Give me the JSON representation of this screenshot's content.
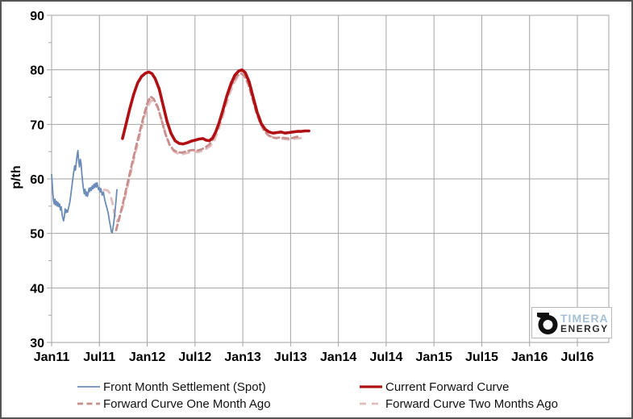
{
  "colors": {
    "grid": "#a3a3a3",
    "axis_text": "#000000",
    "spot_blue": "#6b8bb8",
    "forward_red": "#b01014",
    "one_month_rose": "#c98e8e",
    "two_months_pink": "#e3bcbc",
    "frame_border": "#555555",
    "logo_blue": "#a5c0d4",
    "logo_dark": "#2e2e2e"
  },
  "logo": {
    "brand_top": "TIMERA",
    "brand_bottom": "ENERGY"
  },
  "chart_data": {
    "type": "line",
    "title": "",
    "xlabel": "",
    "ylabel": "p/th",
    "ylim": [
      30,
      90
    ],
    "y_major_ticks": [
      90,
      80,
      70,
      60,
      50,
      40,
      30
    ],
    "y_minor_tick_step": 5,
    "grid": "on",
    "legend_position": "bottom",
    "x_ticks": [
      "Jan11",
      "Jul11",
      "Jan12",
      "Jul12",
      "Jan13",
      "Jul13",
      "Jan14",
      "Jul14",
      "Jan15",
      "Jul15",
      "Jan16",
      "Jul16"
    ],
    "x_months_per_tick": 6,
    "x_axis_note": "x values below are months after Jan11",
    "series": [
      {
        "name": "Front Month Settlement (Spot)",
        "color": "#6b8bb8",
        "dash": "",
        "width": 1.8,
        "points": [
          [
            0,
            60.8
          ],
          [
            0.08,
            59
          ],
          [
            0.16,
            57.2
          ],
          [
            0.24,
            56
          ],
          [
            0.32,
            55.4
          ],
          [
            0.42,
            56.3
          ],
          [
            0.5,
            55.2
          ],
          [
            0.6,
            55.9
          ],
          [
            0.7,
            55
          ],
          [
            0.8,
            55.7
          ],
          [
            0.9,
            54.9
          ],
          [
            1,
            55.4
          ],
          [
            1.1,
            54.3
          ],
          [
            1.2,
            54.9
          ],
          [
            1.35,
            53.2
          ],
          [
            1.5,
            52.3
          ],
          [
            1.6,
            53.1
          ],
          [
            1.7,
            54.5
          ],
          [
            1.8,
            53.8
          ],
          [
            1.9,
            54.3
          ],
          [
            2,
            53.9
          ],
          [
            2.15,
            54.8
          ],
          [
            2.3,
            55.8
          ],
          [
            2.45,
            57.5
          ],
          [
            2.6,
            59.3
          ],
          [
            2.75,
            61
          ],
          [
            2.9,
            62.4
          ],
          [
            3,
            61.6
          ],
          [
            3.1,
            63
          ],
          [
            3.2,
            64.3
          ],
          [
            3.3,
            65.2
          ],
          [
            3.4,
            63.2
          ],
          [
            3.5,
            62.2
          ],
          [
            3.6,
            63.6
          ],
          [
            3.7,
            62.8
          ],
          [
            3.8,
            60.9
          ],
          [
            3.9,
            59.4
          ],
          [
            4,
            58.2
          ],
          [
            4.1,
            57.3
          ],
          [
            4.2,
            58.1
          ],
          [
            4.3,
            56.9
          ],
          [
            4.4,
            57.6
          ],
          [
            4.5,
            56.8
          ],
          [
            4.6,
            57.4
          ],
          [
            4.7,
            58.3
          ],
          [
            4.8,
            57.7
          ],
          [
            4.9,
            58.4
          ],
          [
            5,
            57.9
          ],
          [
            5.1,
            58.7
          ],
          [
            5.2,
            58.2
          ],
          [
            5.3,
            59
          ],
          [
            5.4,
            58.4
          ],
          [
            5.5,
            59.2
          ],
          [
            5.6,
            58.5
          ],
          [
            5.7,
            59.3
          ],
          [
            5.8,
            58.6
          ],
          [
            5.9,
            58
          ],
          [
            6,
            58.4
          ],
          [
            6.1,
            57.6
          ],
          [
            6.2,
            58.2
          ],
          [
            6.35,
            57
          ],
          [
            6.5,
            57.6
          ],
          [
            6.65,
            56.3
          ],
          [
            6.8,
            55.4
          ],
          [
            6.95,
            54.6
          ],
          [
            7.1,
            53.8
          ],
          [
            7.25,
            52.4
          ],
          [
            7.4,
            51.2
          ],
          [
            7.5,
            50.3
          ],
          [
            7.6,
            50.1
          ],
          [
            7.7,
            51
          ],
          [
            7.8,
            52
          ],
          [
            7.9,
            53.2
          ],
          [
            8,
            54.6
          ],
          [
            8.1,
            56.2
          ],
          [
            8.2,
            58
          ]
        ]
      },
      {
        "name": "Current Forward Curve",
        "color": "#b01014",
        "dash": "",
        "width": 3.6,
        "points": [
          [
            8.9,
            67.4
          ],
          [
            9.3,
            69.8
          ],
          [
            9.8,
            72.8
          ],
          [
            10.3,
            75.5
          ],
          [
            10.8,
            77.6
          ],
          [
            11.3,
            78.8
          ],
          [
            11.8,
            79.4
          ],
          [
            12.2,
            79.6
          ],
          [
            12.6,
            79.3
          ],
          [
            13,
            78.4
          ],
          [
            13.5,
            76.5
          ],
          [
            14,
            73.5
          ],
          [
            14.5,
            70.5
          ],
          [
            15,
            68.3
          ],
          [
            15.5,
            67
          ],
          [
            16,
            66.5
          ],
          [
            16.5,
            66.4
          ],
          [
            17,
            66.6
          ],
          [
            17.5,
            66.9
          ],
          [
            18,
            67.1
          ],
          [
            18.5,
            67.3
          ],
          [
            19,
            67.4
          ],
          [
            19.4,
            67.1
          ],
          [
            19.8,
            67
          ],
          [
            20.2,
            67.5
          ],
          [
            20.6,
            68.6
          ],
          [
            21,
            70.2
          ],
          [
            21.5,
            72.6
          ],
          [
            22,
            75.2
          ],
          [
            22.5,
            77.4
          ],
          [
            23,
            79
          ],
          [
            23.5,
            79.8
          ],
          [
            23.9,
            80
          ],
          [
            24.3,
            79.5
          ],
          [
            24.8,
            77.8
          ],
          [
            25.3,
            75
          ],
          [
            25.8,
            72.2
          ],
          [
            26.3,
            70.2
          ],
          [
            26.8,
            69.1
          ],
          [
            27.3,
            68.6
          ],
          [
            27.8,
            68.4
          ],
          [
            28.3,
            68.5
          ],
          [
            28.8,
            68.6
          ],
          [
            29.3,
            68.4
          ],
          [
            29.8,
            68.5
          ],
          [
            30.3,
            68.6
          ],
          [
            30.8,
            68.7
          ],
          [
            31.3,
            68.7
          ],
          [
            31.8,
            68.8
          ],
          [
            32.3,
            68.8
          ]
        ]
      },
      {
        "name": "Forward Curve One Month Ago",
        "color": "#c98e8e",
        "dash": "7 4.5",
        "width": 2.8,
        "points": [
          [
            8.1,
            50.6
          ],
          [
            8.5,
            52.8
          ],
          [
            9,
            55.8
          ],
          [
            9.5,
            59
          ],
          [
            10,
            62.2
          ],
          [
            10.5,
            65.3
          ],
          [
            11,
            68.3
          ],
          [
            11.5,
            71.2
          ],
          [
            12,
            73.8
          ],
          [
            12.4,
            75.1
          ],
          [
            12.8,
            74.7
          ],
          [
            13.3,
            73.3
          ],
          [
            13.8,
            70.8
          ],
          [
            14.3,
            68.2
          ],
          [
            14.8,
            66.3
          ],
          [
            15.3,
            65.3
          ],
          [
            15.8,
            64.9
          ],
          [
            16.3,
            64.8
          ],
          [
            16.8,
            65
          ],
          [
            17.3,
            65.2
          ],
          [
            17.8,
            65.3
          ],
          [
            18.3,
            65.2
          ],
          [
            18.8,
            65.4
          ],
          [
            19.3,
            65.8
          ],
          [
            19.8,
            66.3
          ],
          [
            20.3,
            67.4
          ],
          [
            20.8,
            69.2
          ],
          [
            21.3,
            71.5
          ],
          [
            21.8,
            74
          ],
          [
            22.3,
            76.2
          ],
          [
            22.8,
            77.9
          ],
          [
            23.3,
            78.9
          ],
          [
            23.8,
            79.3
          ],
          [
            24.2,
            78.9
          ],
          [
            24.7,
            77.3
          ],
          [
            25.2,
            74.8
          ],
          [
            25.7,
            72.2
          ],
          [
            26.2,
            70.2
          ],
          [
            26.7,
            68.8
          ],
          [
            27.2,
            68
          ],
          [
            27.7,
            67.6
          ],
          [
            28.2,
            67.5
          ],
          [
            28.7,
            67.6
          ],
          [
            29.2,
            67.5
          ],
          [
            29.7,
            67.4
          ],
          [
            30.2,
            67.5
          ],
          [
            30.7,
            67.7
          ],
          [
            31.2,
            67.8
          ]
        ]
      },
      {
        "name": "Forward Curve Two Months Ago",
        "color": "#e3bcbc",
        "dash": "8 7",
        "width": 2.8,
        "points": [
          [
            6.6,
            58
          ],
          [
            7,
            57.9
          ],
          [
            7.3,
            57.4
          ],
          [
            7.6,
            55.8
          ],
          [
            7.9,
            53.6
          ],
          [
            8.2,
            52.2
          ],
          [
            8.5,
            52.9
          ],
          [
            9,
            55.2
          ],
          [
            9.5,
            58.3
          ],
          [
            10,
            61.5
          ],
          [
            10.5,
            64.6
          ],
          [
            11,
            67.6
          ],
          [
            11.5,
            70.5
          ],
          [
            12,
            73
          ],
          [
            12.5,
            74.4
          ],
          [
            12.9,
            74.2
          ],
          [
            13.4,
            72.8
          ],
          [
            13.9,
            70.3
          ],
          [
            14.4,
            67.8
          ],
          [
            14.9,
            65.9
          ],
          [
            15.4,
            65
          ],
          [
            15.9,
            64.6
          ],
          [
            16.4,
            64.5
          ],
          [
            16.9,
            64.7
          ],
          [
            17.4,
            64.9
          ],
          [
            17.9,
            65
          ],
          [
            18.4,
            64.9
          ],
          [
            18.9,
            65.1
          ],
          [
            19.4,
            65.5
          ],
          [
            19.9,
            66
          ],
          [
            20.4,
            67
          ],
          [
            20.9,
            68.8
          ],
          [
            21.4,
            71
          ],
          [
            21.9,
            73.5
          ],
          [
            22.4,
            75.8
          ],
          [
            22.9,
            77.6
          ],
          [
            23.4,
            78.8
          ],
          [
            23.9,
            79.5
          ],
          [
            24.3,
            79.2
          ],
          [
            24.8,
            77.6
          ],
          [
            25.3,
            75.2
          ],
          [
            25.8,
            72.6
          ],
          [
            26.3,
            70.5
          ],
          [
            26.8,
            69
          ],
          [
            27.3,
            68.1
          ],
          [
            27.8,
            67.6
          ],
          [
            28.3,
            67.4
          ],
          [
            28.8,
            67.4
          ],
          [
            29.3,
            67.3
          ],
          [
            29.8,
            67.2
          ],
          [
            30.3,
            67.3
          ],
          [
            30.8,
            67.4
          ],
          [
            31.3,
            67.5
          ]
        ]
      }
    ]
  },
  "legend": {
    "items": [
      {
        "series_index": 0
      },
      {
        "series_index": 1
      },
      {
        "series_index": 2
      },
      {
        "series_index": 3
      }
    ]
  }
}
